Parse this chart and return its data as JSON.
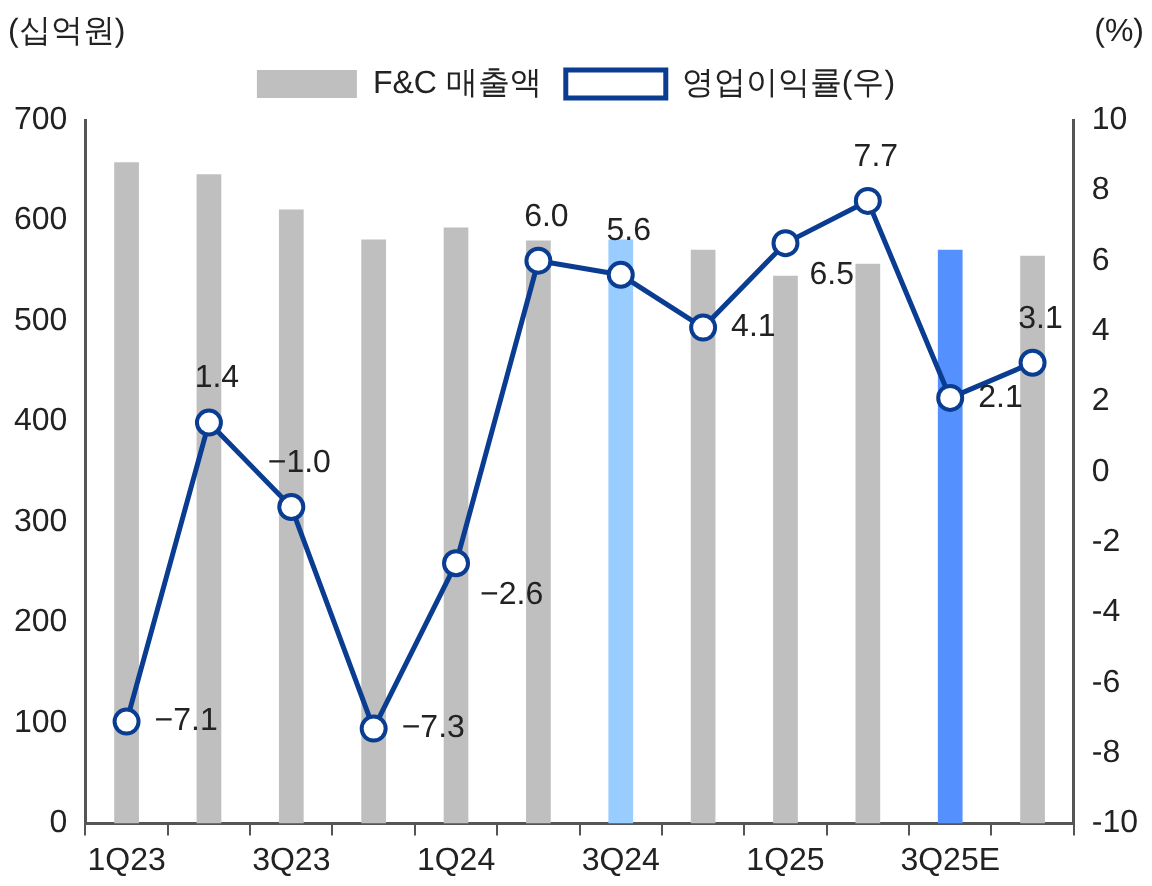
{
  "chart_data": {
    "type": "bar",
    "ylabel": "(십억원)",
    "y2label": "(%)",
    "categories": [
      "1Q23",
      null,
      "3Q23",
      null,
      "1Q24",
      null,
      "3Q24",
      null,
      "1Q25",
      null,
      "3Q25E",
      null
    ],
    "series": [
      {
        "name": "F&C 매출액",
        "colors": [
          "#bfbfbf",
          "#bfbfbf",
          "#bfbfbf",
          "#bfbfbf",
          "#bfbfbf",
          "#bfbfbf",
          "#99ccff",
          "#bfbfbf",
          "#bfbfbf",
          "#bfbfbf",
          "#5590ff",
          "#bfbfbf"
        ],
        "values": [
          658,
          646,
          611,
          581,
          593,
          580,
          581,
          571,
          545,
          557,
          571,
          565
        ]
      },
      {
        "name": "영업이익률(우)",
        "type": "line",
        "axis": "y2",
        "color": "#0a3d91",
        "marker": "circle",
        "values": [
          -7.1,
          1.4,
          -1.0,
          -7.3,
          -2.6,
          6.0,
          5.6,
          4.1,
          6.5,
          7.7,
          2.1,
          3.1
        ],
        "value_labels": [
          "−7.1",
          "1.4",
          "−1.0",
          "−7.3",
          "−2.6",
          "6.0",
          "5.6",
          "4.1",
          "6.5",
          "7.7",
          "2.1",
          "3.1"
        ]
      }
    ],
    "ylim": [
      0,
      700
    ],
    "yticks": [
      0,
      100,
      200,
      300,
      400,
      500,
      600,
      700
    ],
    "y2lim": [
      -10,
      10
    ],
    "y2ticks": [
      -10,
      -8,
      -6,
      -4,
      -2,
      0,
      2,
      4,
      6,
      8,
      10
    ],
    "grid": false,
    "legend": "top"
  }
}
